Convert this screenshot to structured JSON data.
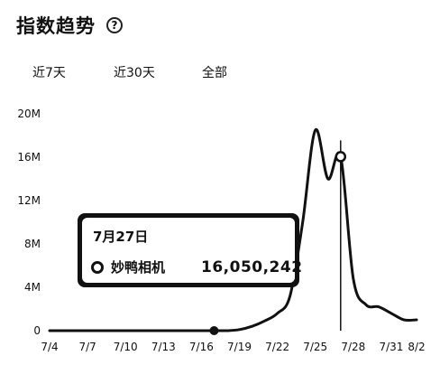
{
  "header": {
    "title": "指数趋势",
    "help_icon": "help-circle-icon",
    "help_text": "?"
  },
  "tabs": [
    {
      "label": "近7天"
    },
    {
      "label": "近30天"
    },
    {
      "label": "全部"
    }
  ],
  "tooltip": {
    "date": "7月27日",
    "series_name": "妙鸭相机",
    "value": "16,050,242"
  },
  "chart_data": {
    "type": "line",
    "title": "",
    "xlabel": "",
    "ylabel": "",
    "ylim": [
      0,
      20000000
    ],
    "yticks": [
      {
        "value": 0,
        "label": "0"
      },
      {
        "value": 4000000,
        "label": "4M"
      },
      {
        "value": 8000000,
        "label": "8M"
      },
      {
        "value": 12000000,
        "label": "12M"
      },
      {
        "value": 16000000,
        "label": "16M"
      },
      {
        "value": 20000000,
        "label": "20M"
      }
    ],
    "xticks": [
      "7/4",
      "7/7",
      "7/10",
      "7/13",
      "7/16",
      "7/19",
      "7/22",
      "7/25",
      "7/28",
      "7/31",
      "8/2"
    ],
    "x": [
      "7/4",
      "7/5",
      "7/6",
      "7/7",
      "7/8",
      "7/9",
      "7/10",
      "7/11",
      "7/12",
      "7/13",
      "7/14",
      "7/15",
      "7/16",
      "7/17",
      "7/18",
      "7/19",
      "7/20",
      "7/21",
      "7/22",
      "7/23",
      "7/24",
      "7/25",
      "7/26",
      "7/27",
      "7/28",
      "7/29",
      "7/30",
      "7/31",
      "8/1",
      "8/2"
    ],
    "series": [
      {
        "values": [
          0,
          0,
          0,
          0,
          0,
          0,
          0,
          0,
          0,
          0,
          0,
          0,
          0,
          0,
          0,
          100000,
          400000,
          900000,
          1600000,
          3200000,
          10000000,
          18500000,
          14000000,
          16050242,
          4800000,
          2400000,
          2200000,
          1600000,
          1000000,
          1000000
        ]
      }
    ],
    "highlight": {
      "x": "7/27",
      "value": 16050242
    },
    "grid": false,
    "legend": "none"
  }
}
